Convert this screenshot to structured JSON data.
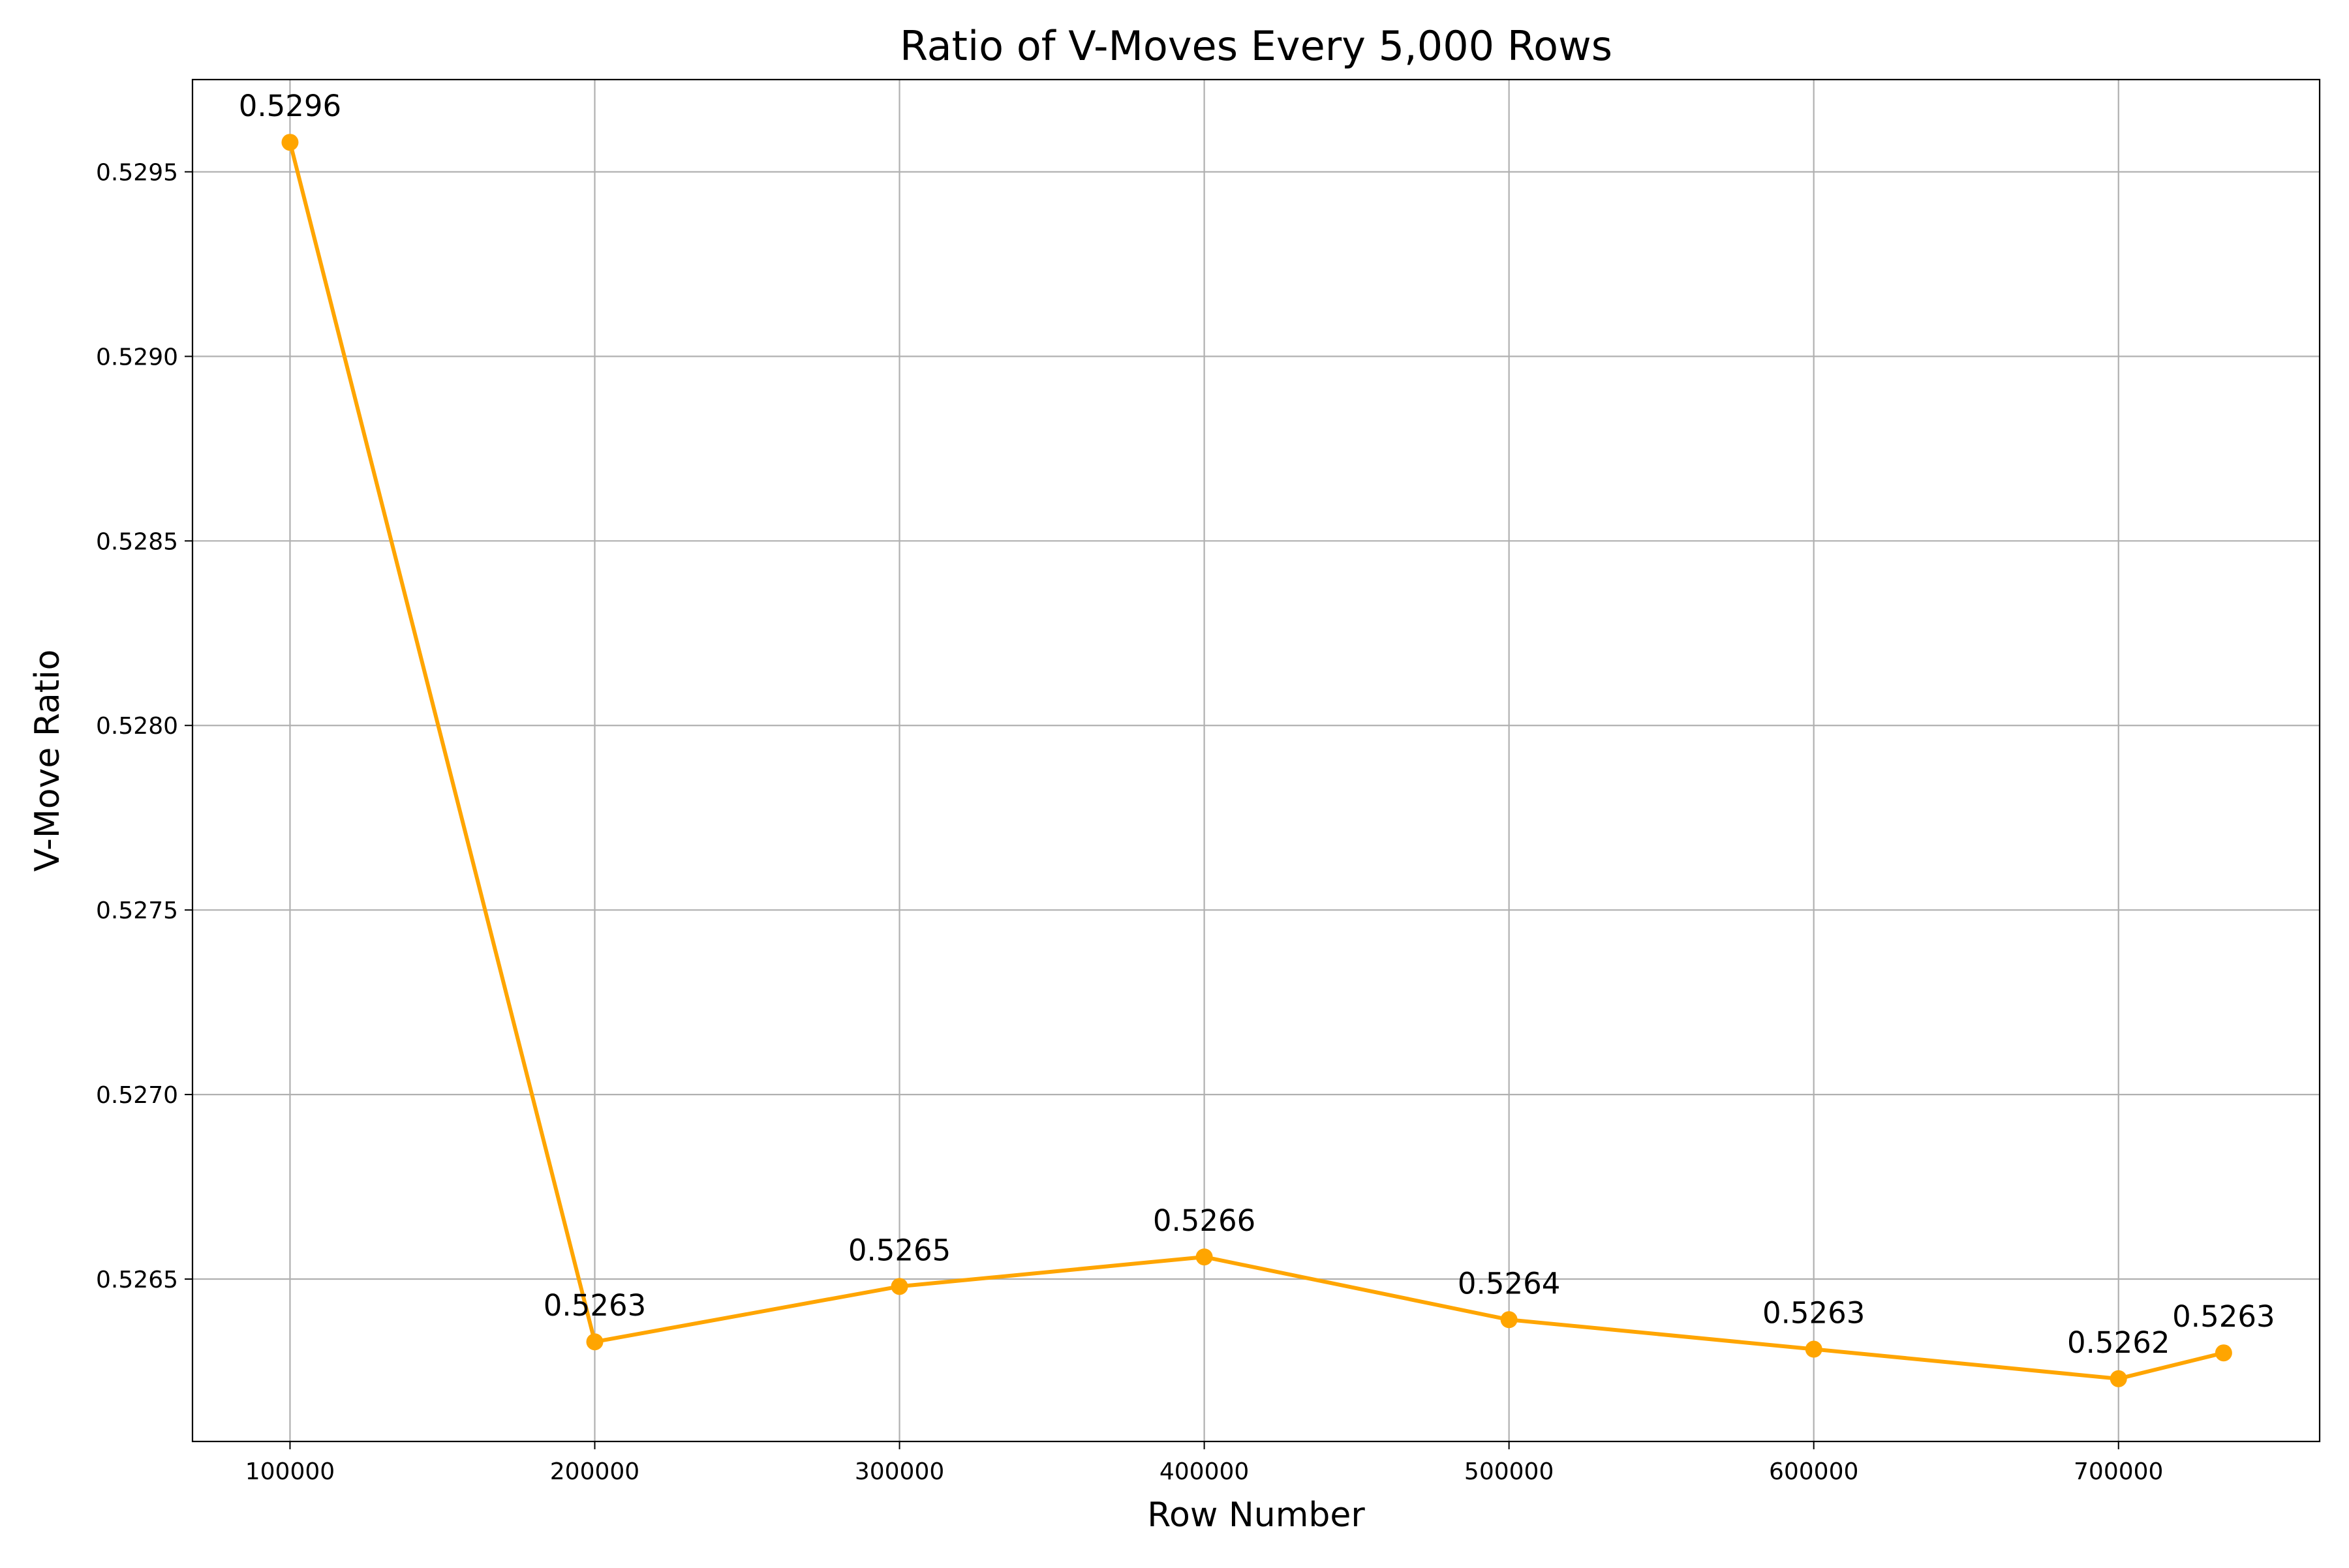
{
  "chart_data": {
    "type": "line",
    "title": "Ratio of V-Moves Every 5,000 Rows",
    "xlabel": "Row Number",
    "ylabel": "V-Move Ratio",
    "xlim": [
      68000,
      766000
    ],
    "ylim": [
      0.52606,
      0.52975
    ],
    "x_ticks": [
      100000,
      200000,
      300000,
      400000,
      500000,
      600000,
      700000
    ],
    "x_tick_labels": [
      "100000",
      "200000",
      "300000",
      "400000",
      "500000",
      "600000",
      "700000"
    ],
    "y_ticks": [
      0.5265,
      0.527,
      0.5275,
      0.528,
      0.5285,
      0.529,
      0.5295
    ],
    "y_tick_labels": [
      "0.5265",
      "0.5270",
      "0.5275",
      "0.5280",
      "0.5285",
      "0.5290",
      "0.5295"
    ],
    "grid": true,
    "series": [
      {
        "color": "#FFA500",
        "marker": "circle",
        "x": [
          100000,
          200000,
          300000,
          400000,
          500000,
          600000,
          700000,
          734500
        ],
        "y": [
          0.52958,
          0.52633,
          0.52648,
          0.52656,
          0.52639,
          0.52631,
          0.52623,
          0.5263
        ],
        "labels": [
          "0.5296",
          "0.5263",
          "0.5265",
          "0.5266",
          "0.5264",
          "0.5263",
          "0.5262",
          "0.5263"
        ]
      }
    ]
  }
}
